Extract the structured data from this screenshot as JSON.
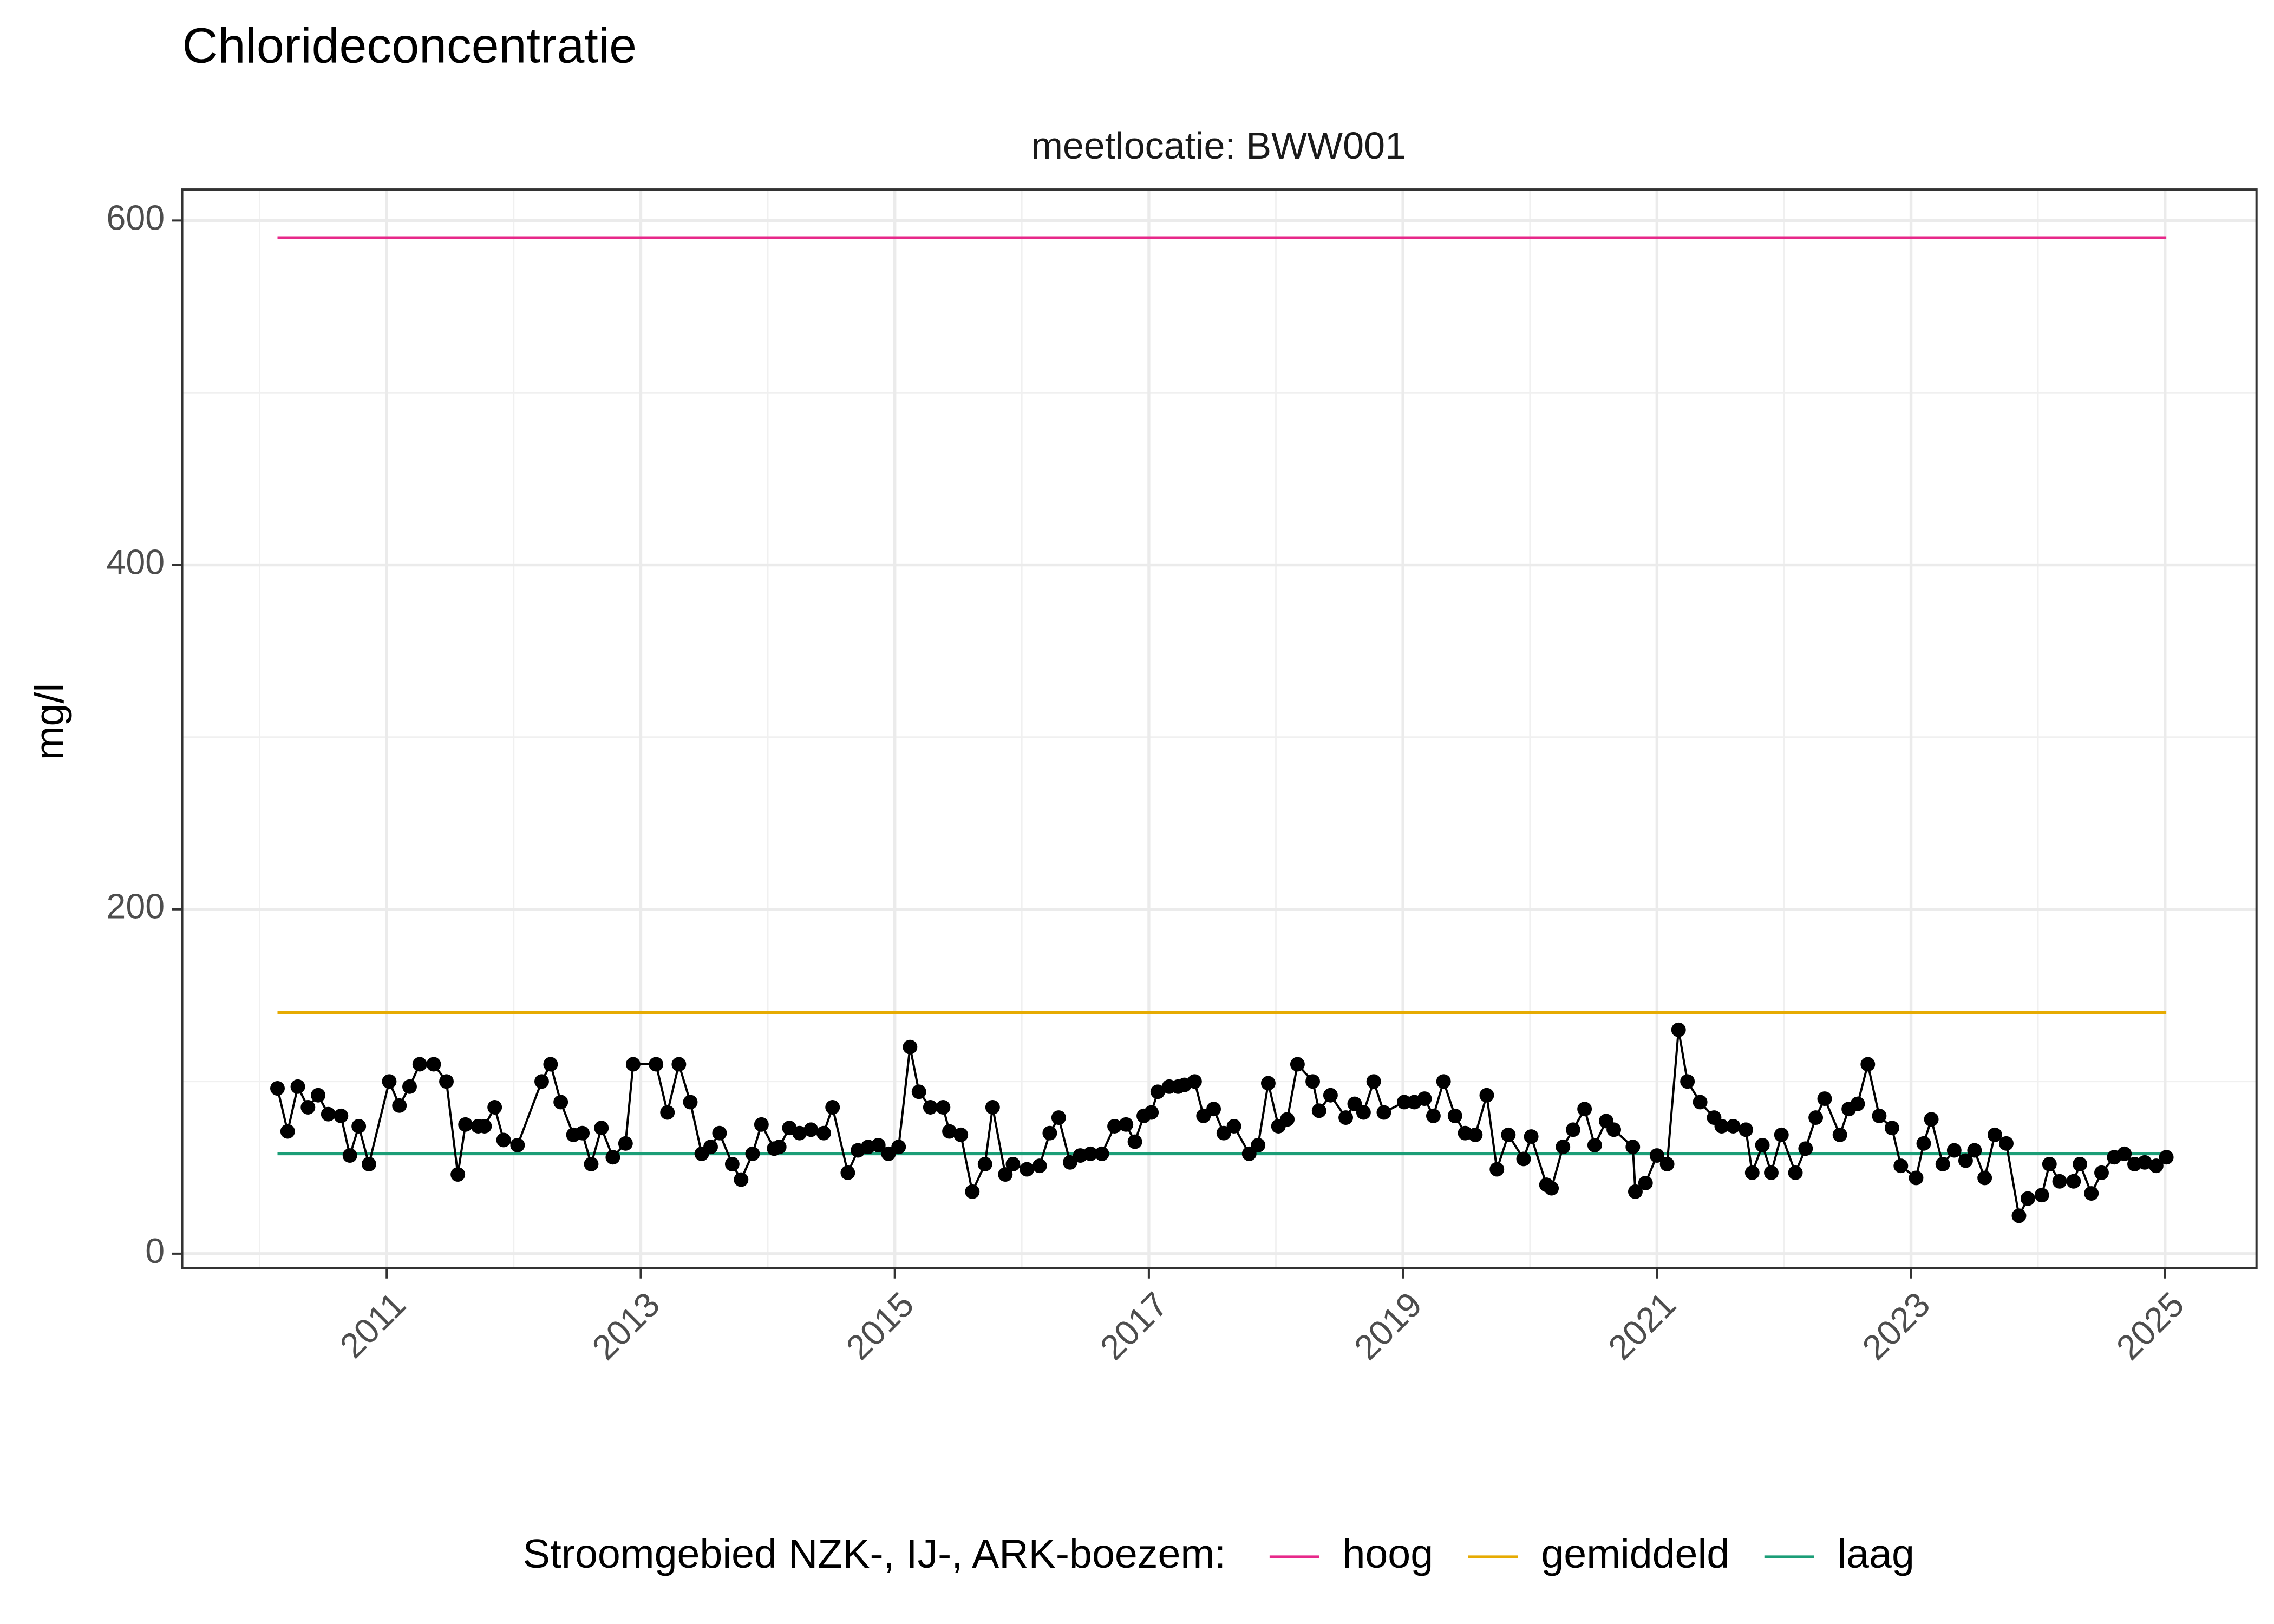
{
  "chart_data": {
    "type": "line",
    "title": "Chlorideconcentratie",
    "subtitle": "meetlocatie: BWW001",
    "y_label": "mg/l",
    "legend_title": "Stroomgebied NZK-, IJ-, ARK-boezem:",
    "legend": "bottom",
    "grid": true,
    "point_color": "#000000",
    "xlim": [
      2009.39,
      2025.72
    ],
    "ylim": [
      -8.5,
      618
    ],
    "xticks": [
      2011,
      2013,
      2015,
      2017,
      2019,
      2021,
      2023,
      2025
    ],
    "yticks": [
      0,
      200,
      400,
      600
    ],
    "x": [
      2010.14,
      2010.22,
      2010.3,
      2010.38,
      2010.46,
      2010.54,
      2010.64,
      2010.71,
      2010.78,
      2010.86,
      2011.02,
      2011.1,
      2011.18,
      2011.26,
      2011.37,
      2011.47,
      2011.56,
      2011.62,
      2011.72,
      2011.77,
      2011.85,
      2011.92,
      2012.03,
      2012.22,
      2012.29,
      2012.37,
      2012.47,
      2012.54,
      2012.61,
      2012.69,
      2012.78,
      2012.88,
      2012.94,
      2013.12,
      2013.21,
      2013.3,
      2013.39,
      2013.48,
      2013.55,
      2013.62,
      2013.72,
      2013.79,
      2013.88,
      2013.95,
      2014.05,
      2014.09,
      2014.17,
      2014.25,
      2014.34,
      2014.44,
      2014.51,
      2014.63,
      2014.71,
      2014.79,
      2014.87,
      2014.95,
      2015.03,
      2015.12,
      2015.19,
      2015.28,
      2015.38,
      2015.43,
      2015.52,
      2015.61,
      2015.71,
      2015.77,
      2015.87,
      2015.93,
      2016.04,
      2016.14,
      2016.22,
      2016.29,
      2016.38,
      2016.46,
      2016.54,
      2016.63,
      2016.73,
      2016.82,
      2016.89,
      2016.96,
      2017.02,
      2017.07,
      2017.16,
      2017.23,
      2017.28,
      2017.36,
      2017.43,
      2017.51,
      2017.59,
      2017.67,
      2017.79,
      2017.86,
      2017.94,
      2018.02,
      2018.09,
      2018.17,
      2018.29,
      2018.34,
      2018.43,
      2018.55,
      2018.62,
      2018.69,
      2018.77,
      2018.85,
      2019.01,
      2019.09,
      2019.17,
      2019.24,
      2019.32,
      2019.41,
      2019.49,
      2019.57,
      2019.66,
      2019.74,
      2019.83,
      2019.95,
      2020.01,
      2020.13,
      2020.17,
      2020.26,
      2020.34,
      2020.43,
      2020.51,
      2020.6,
      2020.66,
      2020.81,
      2020.83,
      2020.91,
      2021.0,
      2021.08,
      2021.17,
      2021.24,
      2021.34,
      2021.45,
      2021.51,
      2021.6,
      2021.7,
      2021.75,
      2021.83,
      2021.9,
      2021.98,
      2022.09,
      2022.17,
      2022.25,
      2022.32,
      2022.44,
      2022.51,
      2022.58,
      2022.66,
      2022.75,
      2022.85,
      2022.92,
      2023.04,
      2023.1,
      2023.16,
      2023.25,
      2023.34,
      2023.43,
      2023.5,
      2023.58,
      2023.66,
      2023.75,
      2023.85,
      2023.92,
      2024.03,
      2024.09,
      2024.17,
      2024.28,
      2024.33,
      2024.42,
      2024.5,
      2024.6,
      2024.68,
      2024.76,
      2024.84,
      2024.93,
      2025.01
    ],
    "values": [
      96,
      71,
      97,
      85,
      92,
      81,
      80,
      57,
      74,
      52,
      100,
      86,
      97,
      110,
      110,
      100,
      46,
      75,
      74,
      74,
      85,
      66,
      63,
      100,
      110,
      88,
      69,
      70,
      52,
      73,
      56,
      64,
      110,
      110,
      82,
      110,
      88,
      58,
      62,
      70,
      52,
      43,
      58,
      75,
      61,
      62,
      73,
      70,
      72,
      70,
      85,
      47,
      60,
      62,
      63,
      58,
      62,
      120,
      94,
      85,
      85,
      71,
      69,
      36,
      52,
      85,
      46,
      52,
      49,
      51,
      70,
      79,
      53,
      57,
      58,
      58,
      74,
      75,
      65,
      80,
      82,
      94,
      97,
      97,
      98,
      100,
      80,
      84,
      70,
      74,
      58,
      63,
      99,
      74,
      78,
      110,
      100,
      83,
      92,
      79,
      87,
      82,
      100,
      82,
      88,
      88,
      90,
      80,
      100,
      80,
      70,
      69,
      92,
      49,
      69,
      55,
      68,
      40,
      38,
      62,
      72,
      84,
      63,
      77,
      72,
      62,
      36,
      41,
      57,
      52,
      130,
      100,
      88,
      79,
      74,
      74,
      72,
      47,
      63,
      47,
      69,
      47,
      61,
      79,
      90,
      69,
      84,
      87,
      110,
      80,
      73,
      51,
      44,
      64,
      78,
      52,
      60,
      54,
      60,
      44,
      69,
      64,
      22,
      32,
      34,
      52,
      42,
      42,
      52,
      35,
      47,
      56,
      58,
      52,
      53,
      51,
      56
    ],
    "series": [
      {
        "name": "hoog",
        "color": "#e7298a",
        "x": [
          2010.14,
          2025.01
        ],
        "values": [
          590,
          590
        ]
      },
      {
        "name": "gemiddeld",
        "color": "#e6ab02",
        "x": [
          2010.14,
          2025.01
        ],
        "values": [
          140,
          140
        ]
      },
      {
        "name": "laag",
        "color": "#1b9e77",
        "x": [
          2010.14,
          2025.01
        ],
        "values": [
          58,
          58
        ]
      }
    ]
  }
}
